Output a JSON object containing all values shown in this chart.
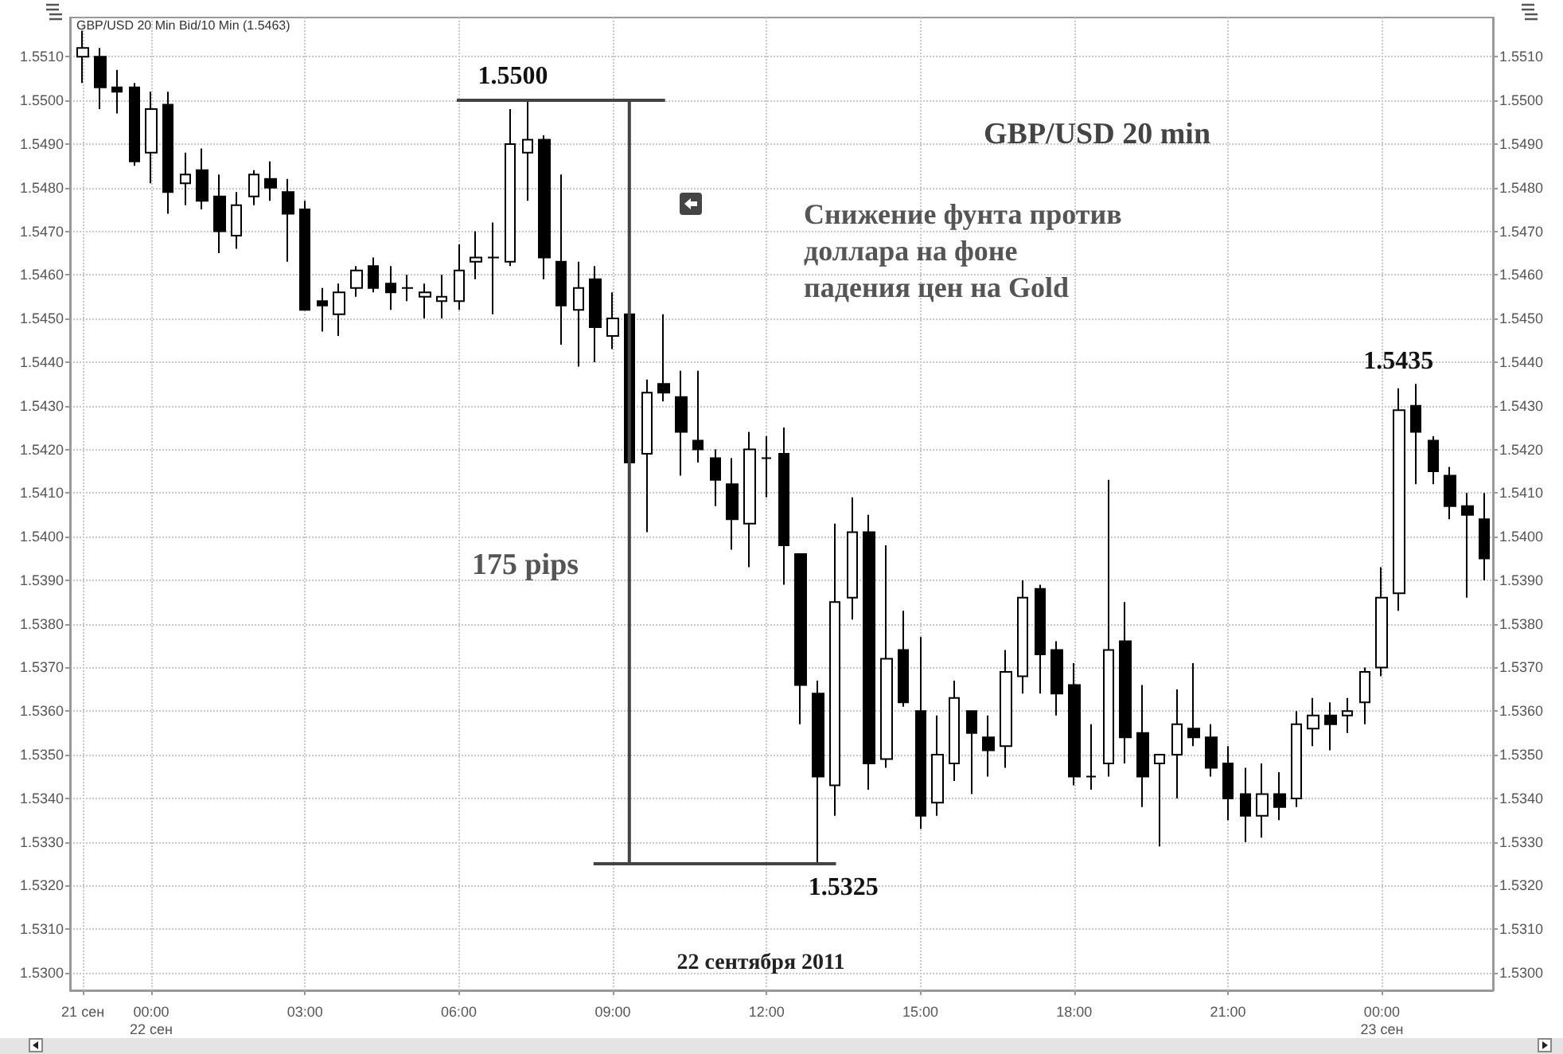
{
  "chart_data": {
    "type": "candlestick",
    "title": "GBP/USD 20 min",
    "subtitle": "Снижение фунта против\nдоллара на фоне\nпадения цен на Gold",
    "color": "#000000",
    "x": [
      "2011-09-21T22:40",
      "2011-09-21T23:00",
      "2011-09-21T23:20",
      "2011-09-21T23:40",
      "2011-09-22T00:00",
      "2011-09-22T00:20",
      "2011-09-22T00:40",
      "2011-09-22T01:00",
      "2011-09-22T01:20",
      "2011-09-22T01:40",
      "2011-09-22T02:00",
      "2011-09-22T02:20",
      "2011-09-22T02:40",
      "2011-09-22T03:00",
      "2011-09-22T03:20",
      "2011-09-22T03:40",
      "2011-09-22T04:00",
      "2011-09-22T04:20",
      "2011-09-22T04:40",
      "2011-09-22T05:00",
      "2011-09-22T05:20",
      "2011-09-22T05:40",
      "2011-09-22T06:00",
      "2011-09-22T06:20",
      "2011-09-22T06:40",
      "2011-09-22T07:00",
      "2011-09-22T07:20",
      "2011-09-22T07:40",
      "2011-09-22T08:00",
      "2011-09-22T08:20",
      "2011-09-22T08:40",
      "2011-09-22T09:00",
      "2011-09-22T09:20",
      "2011-09-22T09:40",
      "2011-09-22T10:00",
      "2011-09-22T10:20",
      "2011-09-22T10:40",
      "2011-09-22T11:00",
      "2011-09-22T11:20",
      "2011-09-22T11:40",
      "2011-09-22T12:00",
      "2011-09-22T12:20",
      "2011-09-22T12:40",
      "2011-09-22T13:00",
      "2011-09-22T13:20",
      "2011-09-22T13:40",
      "2011-09-22T14:00",
      "2011-09-22T14:20",
      "2011-09-22T14:40",
      "2011-09-22T15:00",
      "2011-09-22T15:20",
      "2011-09-22T15:40",
      "2011-09-22T16:00",
      "2011-09-22T16:20",
      "2011-09-22T16:40",
      "2011-09-22T17:00",
      "2011-09-22T17:20",
      "2011-09-22T17:40",
      "2011-09-22T18:00",
      "2011-09-22T18:20",
      "2011-09-22T18:40",
      "2011-09-22T19:00",
      "2011-09-22T19:20",
      "2011-09-22T19:40",
      "2011-09-22T20:00",
      "2011-09-22T20:20",
      "2011-09-22T20:40",
      "2011-09-22T21:00",
      "2011-09-22T21:20",
      "2011-09-22T21:40",
      "2011-09-22T22:00",
      "2011-09-22T22:20",
      "2011-09-22T22:40",
      "2011-09-22T23:00",
      "2011-09-22T23:20",
      "2011-09-22T23:40",
      "2011-09-23T00:00",
      "2011-09-23T00:20",
      "2011-09-23T00:40",
      "2011-09-23T01:00",
      "2011-09-23T01:20",
      "2011-09-23T01:40",
      "2011-09-23T02:00"
    ],
    "ohlc": [
      [
        1.551,
        1.5516,
        1.5504,
        1.5512
      ],
      [
        1.551,
        1.5512,
        1.5498,
        1.5503
      ],
      [
        1.5503,
        1.5507,
        1.5497,
        1.5502
      ],
      [
        1.5503,
        1.5504,
        1.5485,
        1.5486
      ],
      [
        1.5488,
        1.5502,
        1.5481,
        1.5498
      ],
      [
        1.5499,
        1.5502,
        1.5474,
        1.5479
      ],
      [
        1.5481,
        1.5488,
        1.5476,
        1.5483
      ],
      [
        1.5484,
        1.5489,
        1.5475,
        1.5477
      ],
      [
        1.5478,
        1.5483,
        1.5465,
        1.547
      ],
      [
        1.5469,
        1.5479,
        1.5466,
        1.5476
      ],
      [
        1.5478,
        1.5484,
        1.5476,
        1.5483
      ],
      [
        1.5482,
        1.5486,
        1.5477,
        1.548
      ],
      [
        1.5479,
        1.5482,
        1.5463,
        1.5474
      ],
      [
        1.5475,
        1.5477,
        1.5452,
        1.5452
      ],
      [
        1.5454,
        1.5457,
        1.5447,
        1.5453
      ],
      [
        1.5451,
        1.5458,
        1.5446,
        1.5456
      ],
      [
        1.5457,
        1.5462,
        1.5455,
        1.5461
      ],
      [
        1.5462,
        1.5464,
        1.5456,
        1.5457
      ],
      [
        1.5458,
        1.5462,
        1.5452,
        1.5456
      ],
      [
        1.5457,
        1.546,
        1.5454,
        1.5457
      ],
      [
        1.5455,
        1.5458,
        1.545,
        1.5456
      ],
      [
        1.5454,
        1.546,
        1.545,
        1.5455
      ],
      [
        1.5454,
        1.5467,
        1.5452,
        1.5461
      ],
      [
        1.5463,
        1.547,
        1.5459,
        1.5464
      ],
      [
        1.5464,
        1.5472,
        1.5451,
        1.5464
      ],
      [
        1.5463,
        1.5498,
        1.5462,
        1.549
      ],
      [
        1.5488,
        1.55,
        1.5477,
        1.5491
      ],
      [
        1.5491,
        1.5492,
        1.5459,
        1.5464
      ],
      [
        1.5463,
        1.5483,
        1.5444,
        1.5453
      ],
      [
        1.5452,
        1.5463,
        1.5439,
        1.5457
      ],
      [
        1.5459,
        1.5462,
        1.544,
        1.5448
      ],
      [
        1.5446,
        1.5456,
        1.5443,
        1.545
      ],
      [
        1.5451,
        1.5451,
        1.5412,
        1.5417
      ],
      [
        1.5419,
        1.5436,
        1.5401,
        1.5433
      ],
      [
        1.5435,
        1.5451,
        1.5431,
        1.5433
      ],
      [
        1.5432,
        1.5438,
        1.5414,
        1.5424
      ],
      [
        1.5422,
        1.5438,
        1.5417,
        1.542
      ],
      [
        1.5418,
        1.542,
        1.5407,
        1.5413
      ],
      [
        1.5412,
        1.5418,
        1.5397,
        1.5404
      ],
      [
        1.5403,
        1.5424,
        1.5393,
        1.542
      ],
      [
        1.5418,
        1.5423,
        1.5409,
        1.5418
      ],
      [
        1.5419,
        1.5425,
        1.5389,
        1.5398
      ],
      [
        1.5396,
        1.5396,
        1.5357,
        1.5366
      ],
      [
        1.5364,
        1.5367,
        1.5325,
        1.5345
      ],
      [
        1.5343,
        1.5403,
        1.5336,
        1.5385
      ],
      [
        1.5386,
        1.5409,
        1.5381,
        1.5401
      ],
      [
        1.5401,
        1.5405,
        1.5342,
        1.5348
      ],
      [
        1.5349,
        1.5398,
        1.5347,
        1.5372
      ],
      [
        1.5374,
        1.5383,
        1.5361,
        1.5362
      ],
      [
        1.536,
        1.5377,
        1.5333,
        1.5336
      ],
      [
        1.5339,
        1.5359,
        1.5336,
        1.535
      ],
      [
        1.5348,
        1.5367,
        1.5344,
        1.5363
      ],
      [
        1.536,
        1.536,
        1.5341,
        1.5355
      ],
      [
        1.5354,
        1.5359,
        1.5345,
        1.5351
      ],
      [
        1.5352,
        1.5374,
        1.5347,
        1.5369
      ],
      [
        1.5368,
        1.539,
        1.5364,
        1.5386
      ],
      [
        1.5388,
        1.5389,
        1.5364,
        1.5373
      ],
      [
        1.5374,
        1.5376,
        1.5359,
        1.5364
      ],
      [
        1.5366,
        1.5371,
        1.5343,
        1.5345
      ],
      [
        1.5345,
        1.5357,
        1.5342,
        1.5345
      ],
      [
        1.5348,
        1.5413,
        1.5345,
        1.5374
      ],
      [
        1.5376,
        1.5385,
        1.5348,
        1.5354
      ],
      [
        1.5355,
        1.5366,
        1.5338,
        1.5345
      ],
      [
        1.5348,
        1.535,
        1.5329,
        1.535
      ],
      [
        1.535,
        1.5365,
        1.534,
        1.5357
      ],
      [
        1.5356,
        1.5371,
        1.5352,
        1.5354
      ],
      [
        1.5354,
        1.5357,
        1.5345,
        1.5347
      ],
      [
        1.5348,
        1.5352,
        1.5335,
        1.534
      ],
      [
        1.5341,
        1.5347,
        1.533,
        1.5336
      ],
      [
        1.5336,
        1.5348,
        1.5331,
        1.5341
      ],
      [
        1.5341,
        1.5346,
        1.5335,
        1.5338
      ],
      [
        1.534,
        1.536,
        1.5338,
        1.5357
      ],
      [
        1.5356,
        1.5363,
        1.5352,
        1.5359
      ],
      [
        1.5359,
        1.5362,
        1.5351,
        1.5357
      ],
      [
        1.5359,
        1.5363,
        1.5355,
        1.536
      ],
      [
        1.5362,
        1.537,
        1.5357,
        1.5369
      ],
      [
        1.537,
        1.5393,
        1.5368,
        1.5386
      ],
      [
        1.5387,
        1.5434,
        1.5383,
        1.5429
      ],
      [
        1.543,
        1.5435,
        1.5412,
        1.5424
      ],
      [
        1.5422,
        1.5423,
        1.5412,
        1.5415
      ],
      [
        1.5414,
        1.5416,
        1.5404,
        1.5407
      ],
      [
        1.5407,
        1.541,
        1.5386,
        1.5405
      ],
      [
        1.5404,
        1.541,
        1.539,
        1.5395
      ]
    ],
    "xlim": [
      "2011-09-21T22:25",
      "2011-09-23T02:10"
    ],
    "xticks": [
      {
        "value": "2011-09-21T22:40",
        "label": "21 сен"
      },
      {
        "value": "2011-09-22T00:00",
        "label": "00:00\n22 сен"
      },
      {
        "value": "2011-09-22T03:00",
        "label": "03:00"
      },
      {
        "value": "2011-09-22T06:00",
        "label": "06:00"
      },
      {
        "value": "2011-09-22T09:00",
        "label": "09:00"
      },
      {
        "value": "2011-09-22T12:00",
        "label": "12:00"
      },
      {
        "value": "2011-09-22T15:00",
        "label": "15:00"
      },
      {
        "value": "2011-09-22T18:00",
        "label": "18:00"
      },
      {
        "value": "2011-09-22T21:00",
        "label": "21:00"
      },
      {
        "value": "2011-09-23T00:00",
        "label": "00:00\n23 сен"
      }
    ],
    "ylim": [
      1.5296,
      1.5519
    ],
    "yticks": [
      {
        "value": 1.53,
        "label": "1.5300"
      },
      {
        "value": 1.531,
        "label": "1.5310"
      },
      {
        "value": 1.532,
        "label": "1.5320"
      },
      {
        "value": 1.533,
        "label": "1.5330"
      },
      {
        "value": 1.534,
        "label": "1.5340"
      },
      {
        "value": 1.535,
        "label": "1.5350"
      },
      {
        "value": 1.536,
        "label": "1.5360"
      },
      {
        "value": 1.537,
        "label": "1.5370"
      },
      {
        "value": 1.538,
        "label": "1.5380"
      },
      {
        "value": 1.539,
        "label": "1.5390"
      },
      {
        "value": 1.54,
        "label": "1.5400"
      },
      {
        "value": 1.541,
        "label": "1.5410"
      },
      {
        "value": 1.542,
        "label": "1.5420"
      },
      {
        "value": 1.543,
        "label": "1.5430"
      },
      {
        "value": 1.544,
        "label": "1.5440"
      },
      {
        "value": 1.545,
        "label": "1.5450"
      },
      {
        "value": 1.546,
        "label": "1.5460"
      },
      {
        "value": 1.547,
        "label": "1.5470"
      },
      {
        "value": 1.548,
        "label": "1.5480"
      },
      {
        "value": 1.549,
        "label": "1.5490"
      },
      {
        "value": 1.55,
        "label": "1.5500"
      },
      {
        "value": 1.551,
        "label": "1.5510"
      }
    ],
    "y2lim": [
      1.5296,
      1.5519
    ],
    "y2ticks": [
      {
        "value": 1.53,
        "label": "1.5300"
      },
      {
        "value": 1.531,
        "label": "1.5310"
      },
      {
        "value": 1.532,
        "label": "1.5320"
      },
      {
        "value": 1.533,
        "label": "1.5330"
      },
      {
        "value": 1.534,
        "label": "1.5340"
      },
      {
        "value": 1.535,
        "label": "1.5350"
      },
      {
        "value": 1.536,
        "label": "1.5360"
      },
      {
        "value": 1.537,
        "label": "1.5370"
      },
      {
        "value": 1.538,
        "label": "1.5380"
      },
      {
        "value": 1.539,
        "label": "1.5390"
      },
      {
        "value": 1.54,
        "label": "1.5400"
      },
      {
        "value": 1.541,
        "label": "1.5410"
      },
      {
        "value": 1.542,
        "label": "1.5420"
      },
      {
        "value": 1.543,
        "label": "1.5430"
      },
      {
        "value": 1.544,
        "label": "1.5440"
      },
      {
        "value": 1.545,
        "label": "1.5450"
      },
      {
        "value": 1.546,
        "label": "1.5460"
      },
      {
        "value": 1.547,
        "label": "1.5470"
      },
      {
        "value": 1.548,
        "label": "1.5480"
      },
      {
        "value": 1.549,
        "label": "1.5490"
      },
      {
        "value": 1.55,
        "label": "1.5500"
      },
      {
        "value": 1.551,
        "label": "1.5510"
      }
    ],
    "grid": true,
    "annotations": [
      {
        "text": "1.5500",
        "x": "2011-09-22T07:20",
        "y": 1.55
      },
      {
        "text": "1.5325",
        "x": "2011-09-22T13:00",
        "y": 1.5325
      },
      {
        "text": "1.5435",
        "x": "2011-09-23T00:40",
        "y": 1.5435
      },
      "175 pips",
      "22 сентября 2011",
      "GBP/USD 20 Min Bid/10 Min (1.5463)"
    ]
  }
}
